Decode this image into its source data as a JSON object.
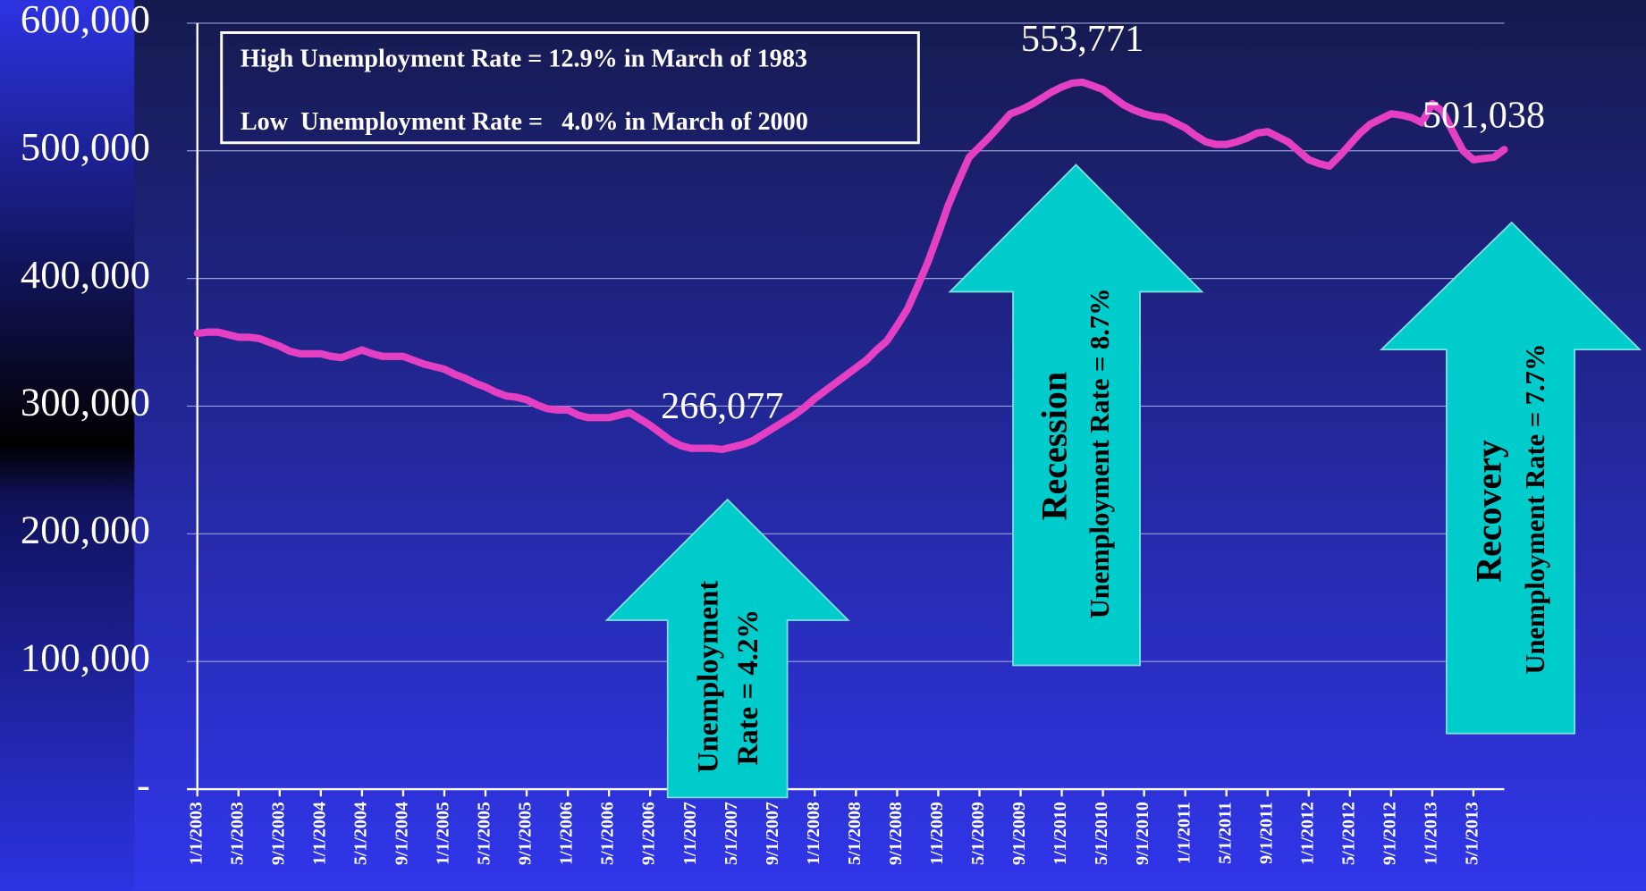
{
  "chart_data": {
    "type": "line",
    "categories": [
      "1/1/2003",
      null,
      null,
      null,
      "5/1/2003",
      null,
      null,
      null,
      "9/1/2003",
      null,
      null,
      null,
      "1/1/2004",
      null,
      null,
      null,
      "5/1/2004",
      null,
      null,
      null,
      "9/1/2004",
      null,
      null,
      null,
      "1/1/2005",
      null,
      null,
      null,
      "5/1/2005",
      null,
      null,
      null,
      "9/1/2005",
      null,
      null,
      null,
      "1/1/2006",
      null,
      null,
      null,
      "5/1/2006",
      null,
      null,
      null,
      "9/1/2006",
      null,
      null,
      null,
      "1/1/2007",
      null,
      null,
      null,
      "5/1/2007",
      null,
      null,
      null,
      "9/1/2007",
      null,
      null,
      null,
      "1/1/2008",
      null,
      null,
      null,
      "5/1/2008",
      null,
      null,
      null,
      "9/1/2008",
      null,
      null,
      null,
      "1/1/2009",
      null,
      null,
      null,
      "5/1/2009",
      null,
      null,
      null,
      "9/1/2009",
      null,
      null,
      null,
      "1/1/2010",
      null,
      null,
      null,
      "5/1/2010",
      null,
      null,
      null,
      "9/1/2010",
      null,
      null,
      null,
      "1/1/2011",
      null,
      null,
      null,
      "5/1/2011",
      null,
      null,
      null,
      "9/1/2011",
      null,
      null,
      null,
      "1/1/2012",
      null,
      null,
      null,
      "5/1/2012",
      null,
      null,
      null,
      "9/1/2012",
      null,
      null,
      null,
      "1/1/2013",
      null,
      null,
      null,
      "5/1/2013",
      null,
      null,
      null
    ],
    "series": [
      {
        "color": "#e53fc4",
        "values": [
          357000,
          358000,
          358000,
          356000,
          354000,
          354000,
          353000,
          350000,
          347000,
          343000,
          341000,
          341000,
          341000,
          339000,
          338000,
          341000,
          344000,
          341000,
          339000,
          339000,
          339000,
          336000,
          333000,
          331000,
          329000,
          325000,
          322000,
          318000,
          315000,
          311000,
          308000,
          307000,
          305000,
          301000,
          298000,
          297000,
          297000,
          293000,
          291000,
          291000,
          291000,
          293000,
          295000,
          290000,
          285000,
          279000,
          273000,
          269000,
          267000,
          267000,
          267000,
          266077,
          268000,
          270000,
          273000,
          278000,
          283000,
          288000,
          293000,
          299000,
          306000,
          312000,
          318000,
          324000,
          330000,
          336000,
          344000,
          351000,
          363000,
          376000,
          394000,
          413000,
          435000,
          458000,
          477000,
          495000,
          503000,
          511000,
          520000,
          529000,
          532000,
          536000,
          541000,
          546000,
          550000,
          553000,
          553771,
          551000,
          548000,
          542000,
          536000,
          532000,
          529000,
          527000,
          526000,
          522000,
          518000,
          512000,
          507000,
          505000,
          505000,
          507000,
          510000,
          514000,
          515000,
          511000,
          507000,
          500000,
          493000,
          490000,
          488000,
          496000,
          505000,
          514000,
          521000,
          525000,
          529000,
          528000,
          526000,
          522000,
          537000,
          531000,
          515000,
          500000,
          493000,
          494000,
          495000,
          501038
        ],
        "value_labels": [
          null,
          null,
          null,
          null,
          null,
          null,
          null,
          null,
          null,
          null,
          null,
          null,
          null,
          null,
          null,
          null,
          null,
          null,
          null,
          null,
          null,
          null,
          null,
          null,
          null,
          null,
          null,
          null,
          null,
          null,
          null,
          null,
          null,
          null,
          null,
          null,
          null,
          null,
          null,
          null,
          null,
          null,
          null,
          null,
          null,
          null,
          null,
          null,
          null,
          null,
          null,
          "266,077",
          null,
          null,
          null,
          null,
          null,
          null,
          null,
          null,
          null,
          null,
          null,
          null,
          null,
          null,
          null,
          null,
          null,
          null,
          null,
          null,
          null,
          null,
          null,
          null,
          null,
          null,
          null,
          null,
          null,
          null,
          null,
          null,
          null,
          null,
          "553,771",
          null,
          null,
          null,
          null,
          null,
          null,
          null,
          null,
          null,
          null,
          null,
          null,
          null,
          null,
          null,
          null,
          null,
          null,
          null,
          null,
          null,
          null,
          null,
          null,
          null,
          null,
          null,
          null,
          null,
          null,
          null,
          null,
          null,
          null,
          null,
          null,
          null,
          null,
          "501,038"
        ]
      }
    ],
    "ylim": [
      0,
      600000
    ],
    "yticks": [
      {
        "value": 0,
        "label": "-"
      },
      {
        "value": 100000,
        "label": "100,000"
      },
      {
        "value": 200000,
        "label": "200,000"
      },
      {
        "value": 300000,
        "label": "300,000"
      },
      {
        "value": 400000,
        "label": "400,000"
      },
      {
        "value": 500000,
        "label": "500,000"
      },
      {
        "value": 600000,
        "label": "600,000"
      }
    ],
    "grid": true,
    "annotations": {
      "box": [
        "High Unemployment Rate = 12.9% in March of 1983",
        "Low  Unemployment Rate =   4.0% in March of 2000"
      ],
      "arrows": [
        [
          "Unemployment",
          "Rate = 4.2%"
        ],
        [
          "Recession",
          "Unemployment Rate = 8.7%"
        ],
        [
          "Recovery",
          "Unemployment Rate = 7.7%"
        ]
      ]
    }
  }
}
